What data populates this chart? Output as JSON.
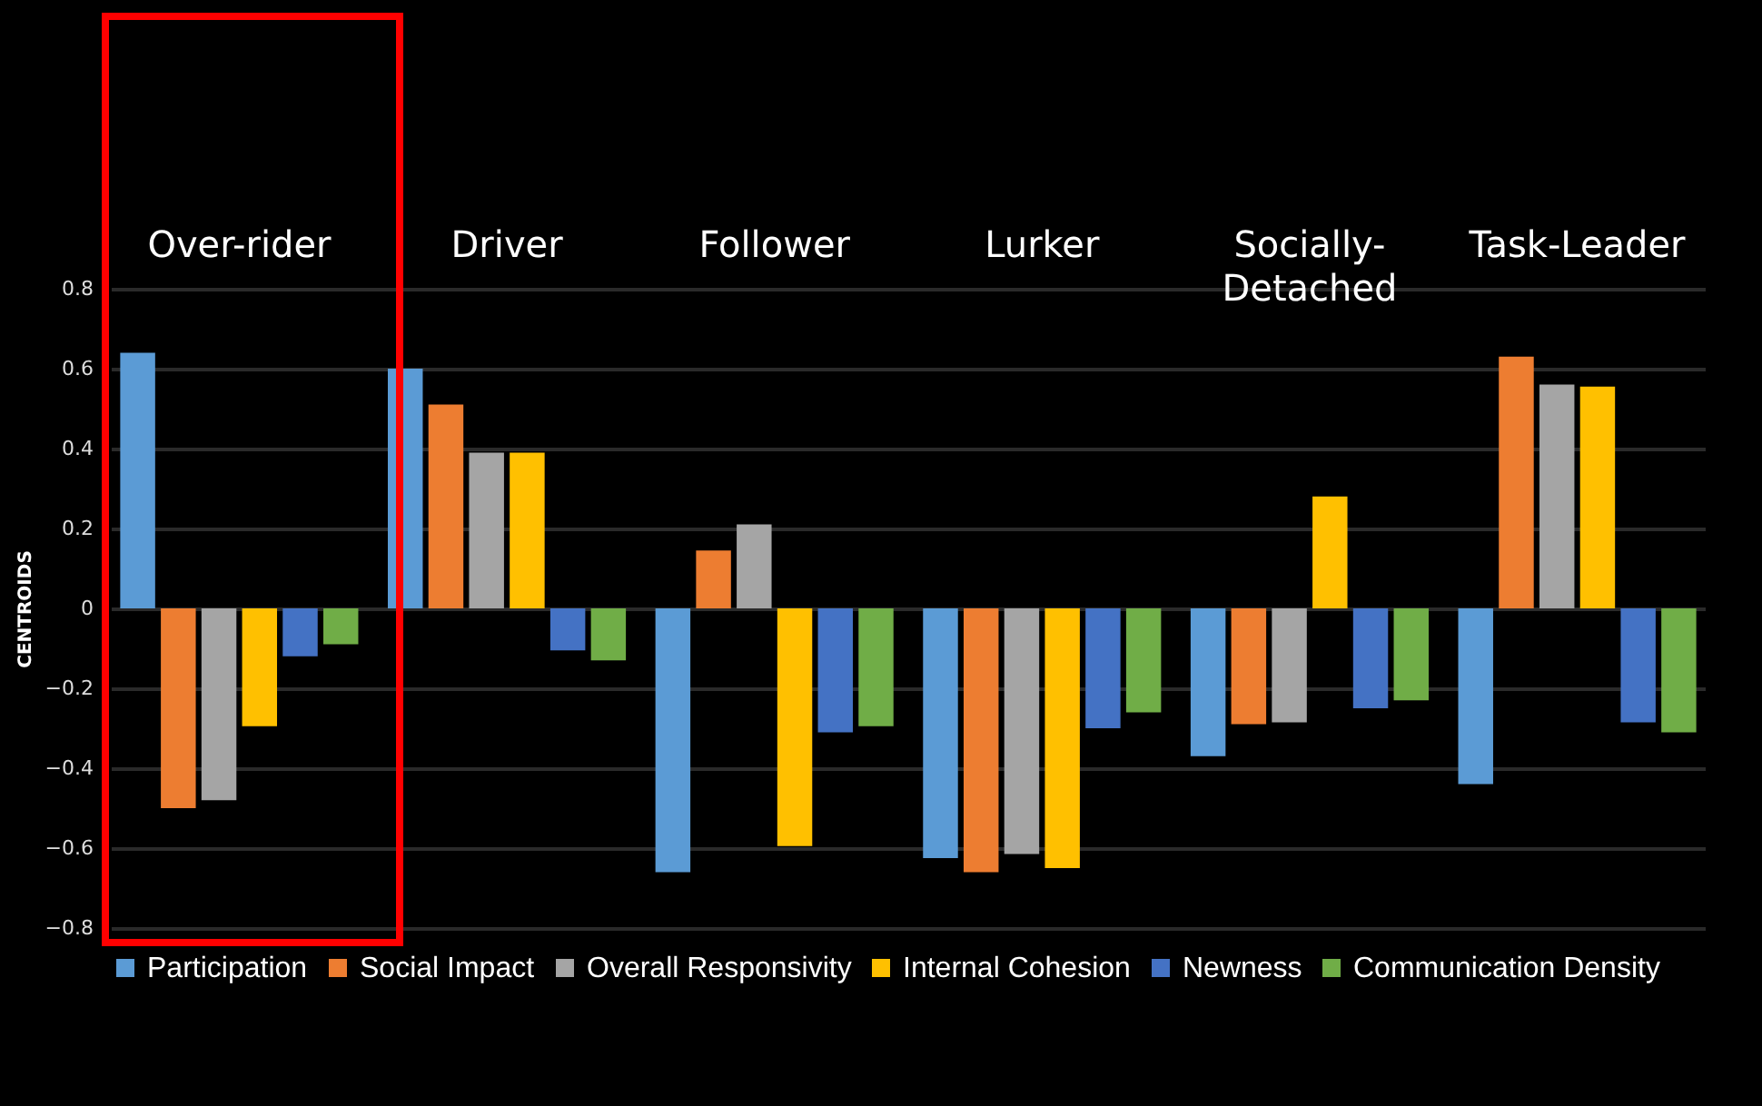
{
  "chart_data": {
    "type": "bar",
    "ylabel": "CENTROIDS",
    "categories": [
      "Over-rider",
      "Driver",
      "Follower",
      "Lurker",
      "Socially-Detached",
      "Task-Leader"
    ],
    "series": [
      {
        "name": "Participation",
        "color": "#5b9bd5",
        "values": [
          0.64,
          0.6,
          -0.66,
          -0.625,
          -0.37,
          -0.44
        ]
      },
      {
        "name": "Social Impact",
        "color": "#ed7d31",
        "values": [
          -0.5,
          0.51,
          0.145,
          -0.66,
          -0.29,
          0.63
        ]
      },
      {
        "name": "Overall Responsivity",
        "color": "#a5a5a5",
        "values": [
          -0.48,
          0.39,
          0.21,
          -0.615,
          -0.285,
          0.56
        ]
      },
      {
        "name": "Internal Cohesion",
        "color": "#ffc000",
        "values": [
          -0.295,
          0.39,
          -0.595,
          -0.65,
          0.28,
          0.555
        ]
      },
      {
        "name": "Newness",
        "color": "#4472c4",
        "values": [
          -0.12,
          -0.105,
          -0.31,
          -0.3,
          -0.25,
          -0.285
        ]
      },
      {
        "name": "Communication Density",
        "color": "#70ad47",
        "values": [
          -0.09,
          -0.13,
          -0.295,
          -0.26,
          -0.23,
          -0.31
        ]
      }
    ],
    "ylim": [
      -0.8,
      0.8
    ],
    "yticks": [
      -0.8,
      -0.6,
      -0.4,
      -0.2,
      0,
      0.2,
      0.4,
      0.6,
      0.8
    ],
    "grid": "y",
    "legend": "bottom"
  }
}
